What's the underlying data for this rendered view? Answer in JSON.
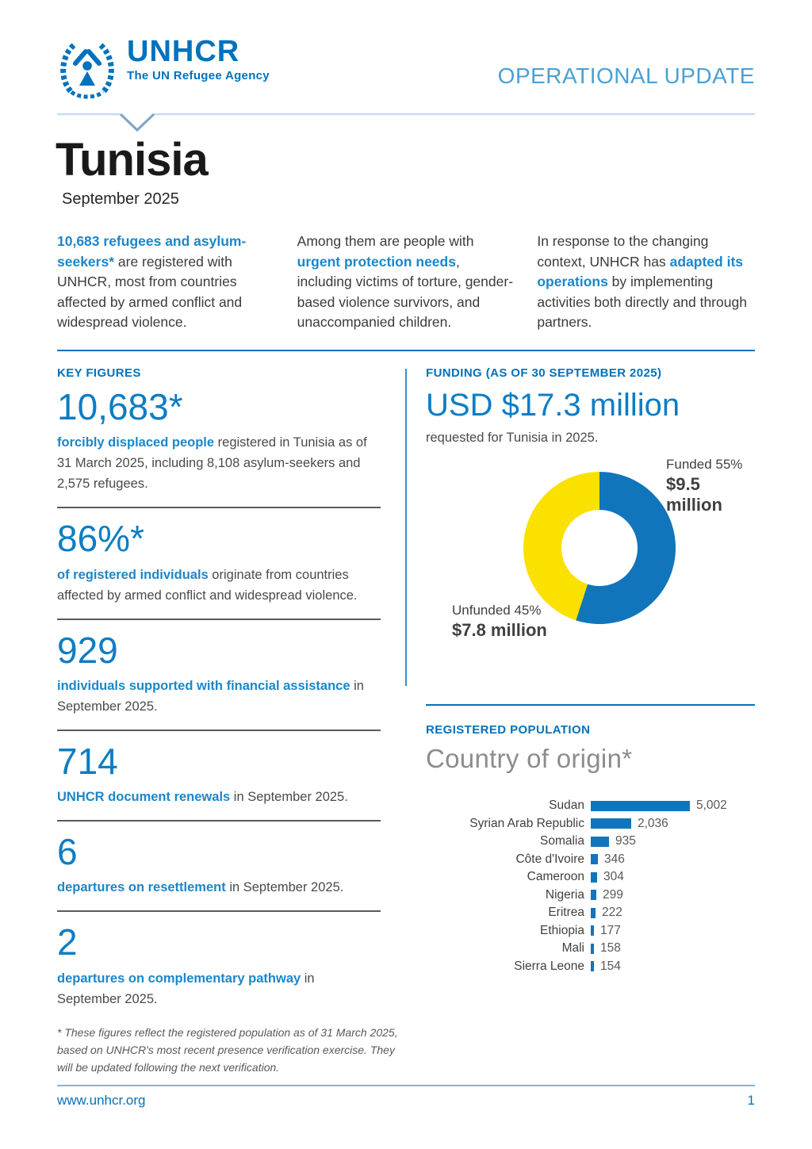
{
  "header": {
    "logo_name": "UNHCR",
    "logo_tagline": "The UN Refugee Agency",
    "doc_type": "OPERATIONAL UPDATE"
  },
  "title": {
    "country": "Tunisia",
    "period": "September 2025"
  },
  "intro_columns": [
    {
      "segments": [
        {
          "text": "10,683 refugees and asylum-seekers*",
          "bold": true
        },
        {
          "text": " are registered with UNHCR, most from countries affected by armed conflict and widespread violence.",
          "bold": false
        }
      ]
    },
    {
      "segments": [
        {
          "text": "Among them are people with ",
          "bold": false
        },
        {
          "text": "urgent protection needs",
          "bold": true
        },
        {
          "text": ", including victims of torture, gender-based violence survivors, and unaccompanied children.",
          "bold": false
        }
      ]
    },
    {
      "segments": [
        {
          "text": "In response to the changing context, UNHCR has ",
          "bold": false
        },
        {
          "text": "adapted its operations",
          "bold": true
        },
        {
          "text": " by implementing activities both directly and through partners.",
          "bold": false
        }
      ]
    }
  ],
  "key_figures": {
    "section_label": "KEY FIGURES",
    "items": [
      {
        "value": "10,683*",
        "lead": "forcibly displaced people",
        "rest": " registered in Tunisia as of 31 March 2025, including 8,108 asylum-seekers and 2,575 refugees."
      },
      {
        "value": "86%*",
        "lead": "of registered individuals",
        "rest": " originate from countries affected by armed conflict and widespread violence."
      },
      {
        "value": "929",
        "lead": "individuals supported with financial assistance",
        "rest": " in September 2025."
      },
      {
        "value": "714",
        "lead": "UNHCR document renewals",
        "rest": " in September 2025."
      },
      {
        "value": "6",
        "lead": "departures on resettlement",
        "rest": " in September 2025."
      },
      {
        "value": "2",
        "lead": "departures on complementary pathway",
        "rest": " in September 2025."
      }
    ],
    "footnote": "* These figures reflect the registered population as of 31 March 2025, based on UNHCR's most recent presence verification exercise. They will be updated following the next verification."
  },
  "funding": {
    "section_label": "FUNDING (AS OF 30 SEPTEMBER 2025)",
    "amount": "USD $17.3 million",
    "subtitle": "requested for Tunisia in 2025.",
    "funded_pct": 55,
    "funded_label": "Funded 55%",
    "funded_amount": "$9.5 million",
    "unfunded_label": "Unfunded 45%",
    "unfunded_amount": "$7.8 million",
    "colors": {
      "funded": "#1175BB",
      "unfunded": "#FAE100"
    }
  },
  "population": {
    "section_label": "REGISTERED POPULATION",
    "title": "Country of origin*",
    "countries": [
      {
        "label": "Sudan",
        "value": 5002,
        "display": "5,002"
      },
      {
        "label": "Syrian Arab Republic",
        "value": 2036,
        "display": "2,036"
      },
      {
        "label": "Somalia",
        "value": 935,
        "display": "935"
      },
      {
        "label": "Côte d'Ivoire",
        "value": 346,
        "display": "346"
      },
      {
        "label": "Cameroon",
        "value": 304,
        "display": "304"
      },
      {
        "label": "Nigeria",
        "value": 299,
        "display": "299"
      },
      {
        "label": "Eritrea",
        "value": 222,
        "display": "222"
      },
      {
        "label": "Ethiopia",
        "value": 177,
        "display": "177"
      },
      {
        "label": "Mali",
        "value": 158,
        "display": "158"
      },
      {
        "label": "Sierra Leone",
        "value": 154,
        "display": "154"
      }
    ]
  },
  "footer": {
    "url": "www.unhcr.org",
    "page": "1"
  },
  "chart_data": [
    {
      "type": "pie",
      "title": "FUNDING (AS OF 30 SEPTEMBER 2025) — USD $17.3 million requested for Tunisia in 2025",
      "labels": [
        "Funded 55%",
        "Unfunded 45%"
      ],
      "values": [
        55,
        45
      ],
      "amounts": [
        "$9.5 million",
        "$7.8 million"
      ],
      "colors": [
        "#1175BB",
        "#FAE100"
      ],
      "style": "donut",
      "start_angle_deg": 0,
      "direction": "clockwise",
      "legend_position": "callout-labels"
    },
    {
      "type": "bar",
      "title": "REGISTERED POPULATION — Country of origin*",
      "orientation": "horizontal",
      "categories": [
        "Sudan",
        "Syrian Arab Republic",
        "Somalia",
        "Côte d'Ivoire",
        "Cameroon",
        "Nigeria",
        "Eritrea",
        "Ethiopia",
        "Mali",
        "Sierra Leone"
      ],
      "values": [
        5002,
        2036,
        935,
        346,
        304,
        299,
        222,
        177,
        158,
        154
      ],
      "data_labels": [
        "5,002",
        "2,036",
        "935",
        "346",
        "304",
        "299",
        "222",
        "177",
        "158",
        "154"
      ],
      "bar_color": "#1175BB",
      "grid": false,
      "xlabel": "",
      "ylabel": ""
    }
  ]
}
